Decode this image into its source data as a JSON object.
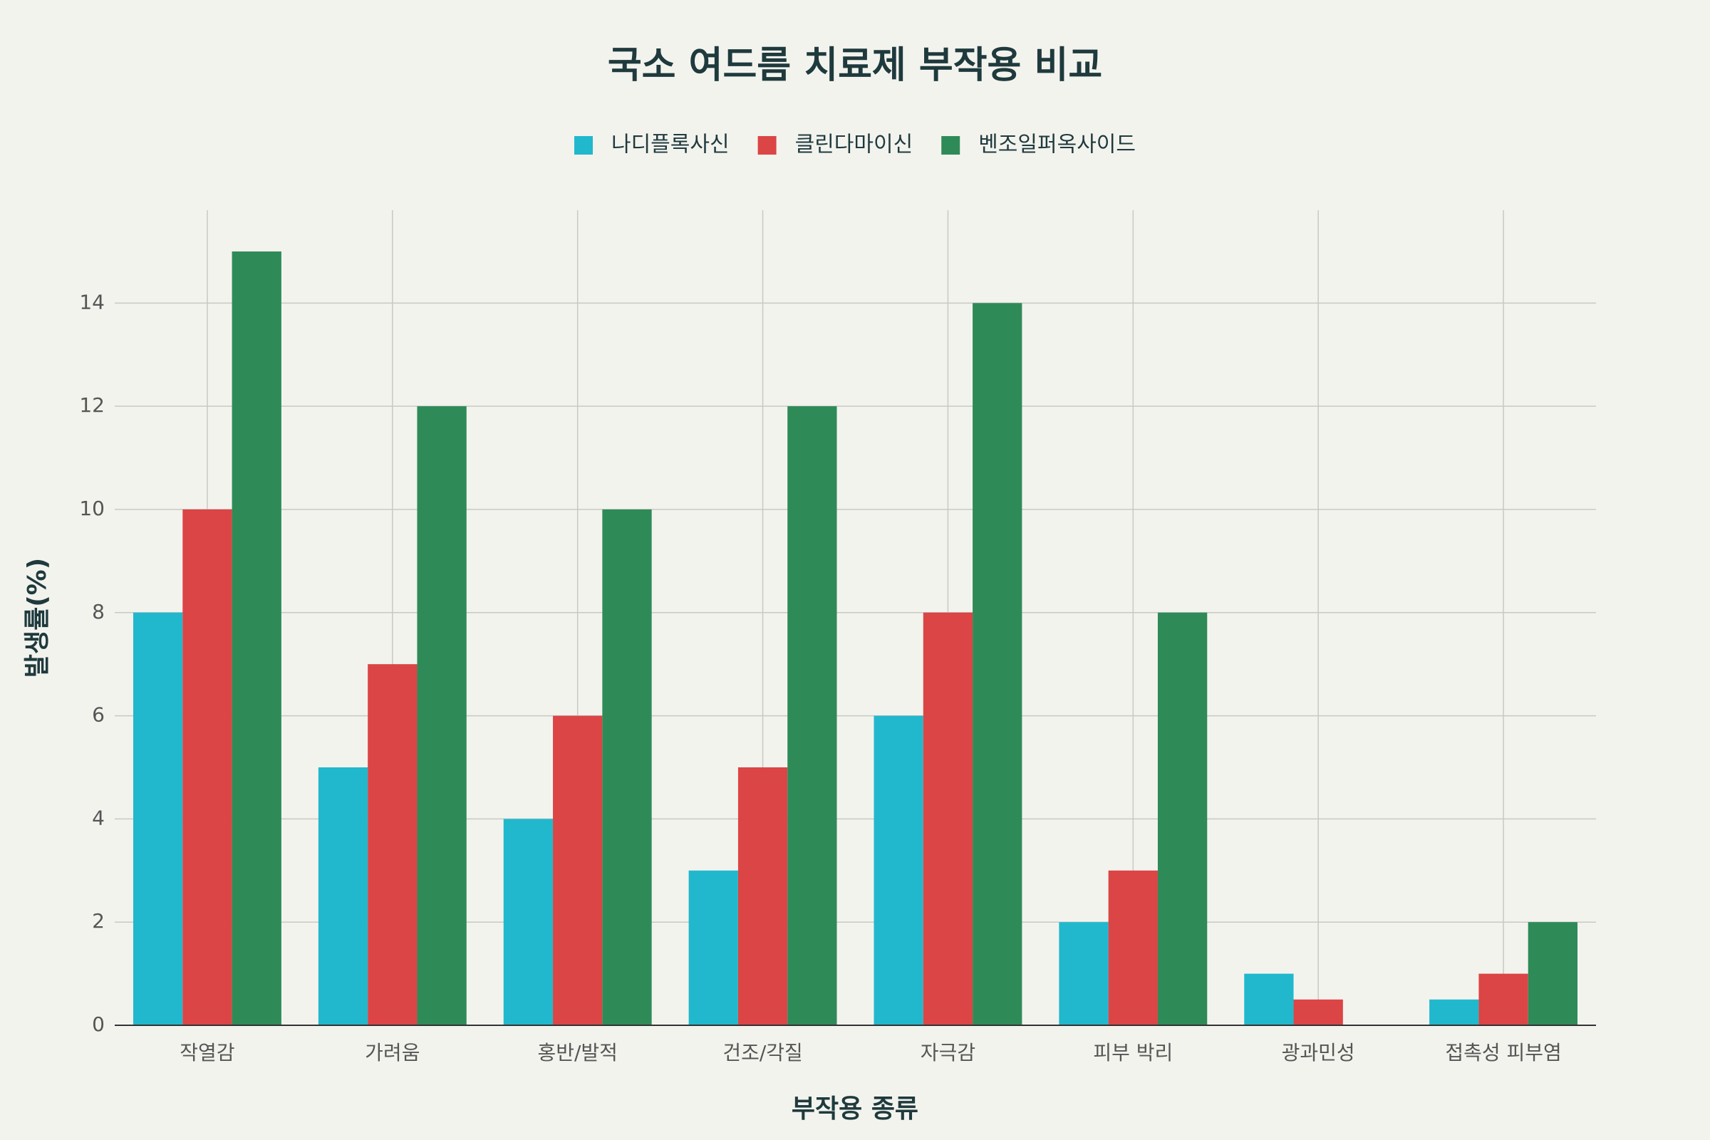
{
  "chart_data": {
    "type": "bar",
    "title": "국소 여드름 치료제 부작용 비교",
    "x_label": "부작용 종류",
    "y_label": "발생률(%)",
    "categories": [
      "작열감",
      "가려움",
      "홍반/발적",
      "건조/각질",
      "자극감",
      "피부 박리",
      "광과민성",
      "접촉성 피부염"
    ],
    "series": [
      {
        "name": "나디플록사신",
        "color": "#21b8cd",
        "values": [
          8,
          5,
          4,
          3,
          6,
          2,
          1,
          0.5
        ]
      },
      {
        "name": "클린다마이신",
        "color": "#db4545",
        "values": [
          10,
          7,
          6,
          5,
          8,
          3,
          0.5,
          1
        ]
      },
      {
        "name": "벤조일퍼옥사이드",
        "color": "#2e8b57",
        "values": [
          15,
          12,
          10,
          12,
          14,
          8,
          0,
          2
        ]
      }
    ],
    "ylim": [
      0,
      15.8
    ],
    "yticks": [
      0,
      2,
      4,
      6,
      8,
      10,
      12,
      14
    ],
    "grid": true,
    "legend": "top"
  }
}
